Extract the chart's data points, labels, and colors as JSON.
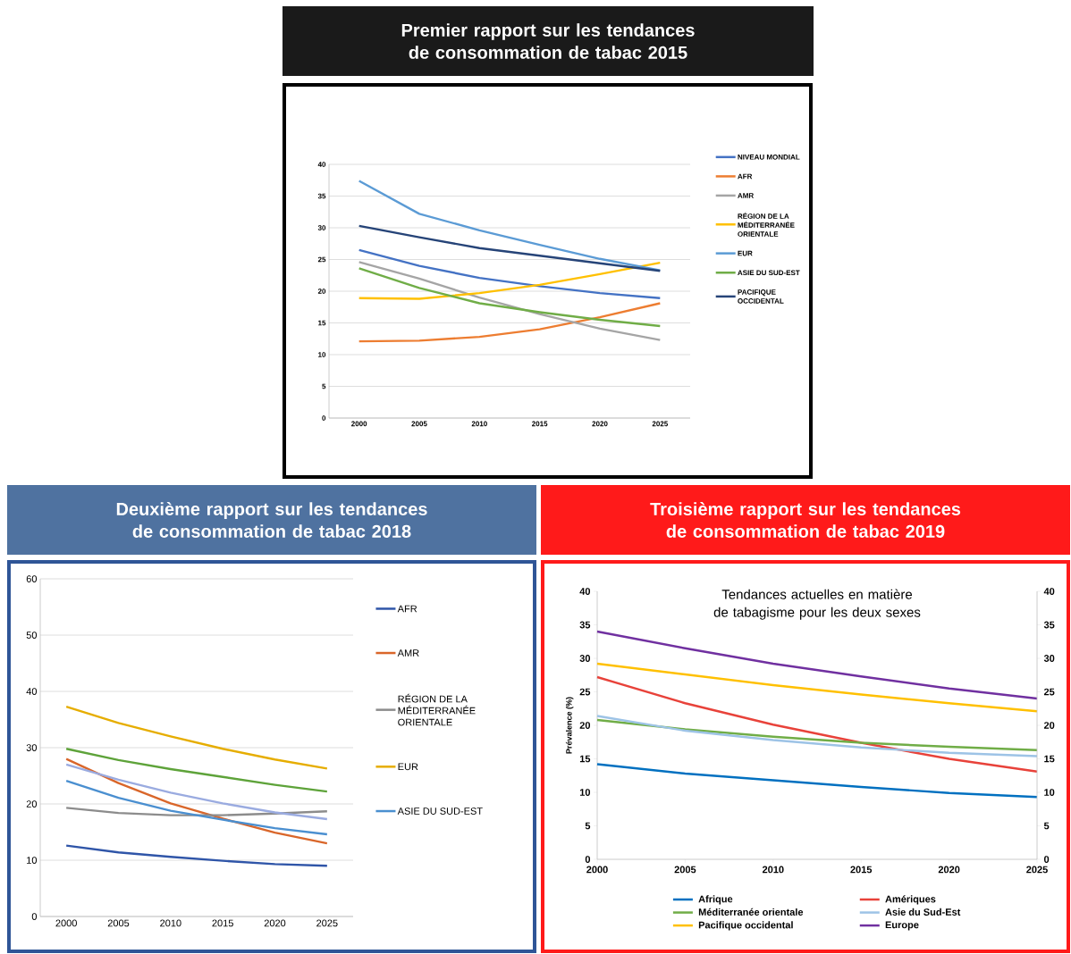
{
  "chart_data": [
    {
      "type": "line",
      "title": "Premier rapport sur les tendances de consommation de tabac 2015",
      "x": [
        2000,
        2005,
        2010,
        2015,
        2020,
        2025
      ],
      "xlim": [
        1997.5,
        2027.5
      ],
      "xticks": [
        2000,
        2005,
        2010,
        2015,
        2020,
        2025
      ],
      "ylim": [
        0,
        40
      ],
      "yticks": [
        0,
        5,
        10,
        15,
        20,
        25,
        30,
        35,
        40
      ],
      "grid": "y",
      "legend": "right",
      "series": [
        {
          "name": "NIVEAU MONDIAL",
          "color": "#4472c4",
          "values": [
            26.5,
            24.0,
            22.1,
            20.8,
            19.7,
            18.9
          ]
        },
        {
          "name": "AFR",
          "color": "#ed7d31",
          "values": [
            12.1,
            12.2,
            12.8,
            14.0,
            15.9,
            18.1
          ]
        },
        {
          "name": "AMR",
          "color": "#a5a5a5",
          "values": [
            24.6,
            22.0,
            19.0,
            16.4,
            14.1,
            12.3
          ]
        },
        {
          "name": "RÉGION DE LA MÉDITERRANÉE ORIENTALE",
          "color": "#ffc000",
          "values": [
            18.9,
            18.8,
            19.7,
            21.0,
            22.7,
            24.5
          ]
        },
        {
          "name": "EUR",
          "color": "#5b9bd5",
          "values": [
            37.4,
            32.2,
            29.6,
            27.3,
            25.1,
            23.3
          ]
        },
        {
          "name": "ASIE DU SUD-EST",
          "color": "#70ad47",
          "values": [
            23.6,
            20.5,
            18.1,
            16.7,
            15.5,
            14.5
          ]
        },
        {
          "name": "PACIFIQUE OCCIDENTAL",
          "color": "#264478",
          "values": [
            30.3,
            28.5,
            26.8,
            25.6,
            24.4,
            23.2
          ]
        }
      ]
    },
    {
      "type": "line",
      "title": "Deuxième rapport sur les tendances de consommation de tabac 2018",
      "x": [
        2000,
        2005,
        2010,
        2015,
        2020,
        2025
      ],
      "xlim": [
        1997.5,
        2027.5
      ],
      "xticks": [
        2000,
        2005,
        2010,
        2015,
        2020,
        2025
      ],
      "ylim": [
        0,
        60
      ],
      "yticks": [
        0,
        10,
        20,
        30,
        40,
        50,
        60
      ],
      "grid": "y",
      "legend": "right",
      "series": [
        {
          "name": "AFR",
          "color": "#2f55a8",
          "values": [
            12.6,
            11.4,
            10.6,
            9.9,
            9.3,
            9.0
          ]
        },
        {
          "name": "AMR",
          "color": "#d9662a",
          "values": [
            28.0,
            23.7,
            20.1,
            17.4,
            14.9,
            13.0
          ]
        },
        {
          "name": "RÉGION DE LA MÉDITERRANÉE ORIENTALE",
          "color": "#8c8c8c",
          "values": [
            19.3,
            18.4,
            18.0,
            18.0,
            18.3,
            18.7
          ]
        },
        {
          "name": "EUR",
          "color": "#e6ad00",
          "values": [
            37.3,
            34.4,
            32.0,
            29.8,
            27.9,
            26.3
          ]
        },
        {
          "name": "ASIE DU SUD-EST",
          "color": "#4a8fd0",
          "values": [
            24.1,
            21.1,
            18.8,
            17.2,
            15.7,
            14.6
          ]
        },
        {
          "color": "#5ea33a",
          "values": [
            29.8,
            27.8,
            26.2,
            24.8,
            23.4,
            22.2
          ]
        },
        {
          "color": "#9aabe0",
          "values": [
            27.0,
            24.3,
            22.0,
            20.1,
            18.5,
            17.3
          ]
        }
      ]
    },
    {
      "type": "line",
      "title": "Troisième rapport sur les tendances de consommation de tabac 2019",
      "subtitle": "Tendances actuelles en matière de tabagisme pour les deux sexes",
      "ylabel": "Prévalence (%)",
      "x": [
        2000,
        2005,
        2010,
        2015,
        2020,
        2025
      ],
      "xlim": [
        2000,
        2025
      ],
      "xticks": [
        2000,
        2005,
        2010,
        2015,
        2020,
        2025
      ],
      "ylim": [
        0,
        40
      ],
      "yticks": [
        0,
        5,
        10,
        15,
        20,
        25,
        30,
        35,
        40
      ],
      "y2lim": [
        0,
        40
      ],
      "y2ticks": [
        0,
        5,
        10,
        15,
        20,
        25,
        30,
        35,
        40
      ],
      "legend": "bottom",
      "series": [
        {
          "name": "Afrique",
          "color": "#0070c0",
          "values": [
            14.2,
            12.8,
            11.8,
            10.8,
            9.9,
            9.3
          ]
        },
        {
          "name": "Amériques",
          "color": "#e8423a",
          "values": [
            27.2,
            23.3,
            20.1,
            17.4,
            15.0,
            13.1
          ]
        },
        {
          "name": "Méditerranée orientale",
          "color": "#70ad47",
          "values": [
            20.8,
            19.4,
            18.3,
            17.4,
            16.8,
            16.3
          ]
        },
        {
          "name": "Asie du Sud-Est",
          "color": "#9dc3e6",
          "values": [
            21.4,
            19.2,
            17.8,
            16.7,
            15.9,
            15.4
          ]
        },
        {
          "name": "Pacifique occidental",
          "color": "#ffc000",
          "values": [
            29.2,
            27.6,
            26.0,
            24.6,
            23.3,
            22.1
          ]
        },
        {
          "name": "Europe",
          "color": "#7030a0",
          "values": [
            34.0,
            31.5,
            29.2,
            27.3,
            25.5,
            24.0
          ]
        }
      ]
    }
  ]
}
